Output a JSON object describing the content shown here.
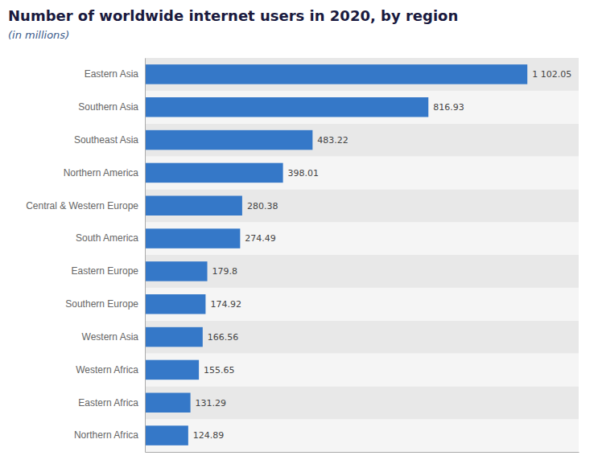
{
  "chart_data": {
    "type": "bar",
    "orientation": "horizontal",
    "title": "Number of worldwide internet users in 2020, by region",
    "subtitle": "(in millions)",
    "categories": [
      "Northern Africa",
      "Eastern Africa",
      "Western Africa",
      "Western Asia",
      "Southern Europe",
      "Eastern Europe",
      "South America",
      "Central & Western Europe",
      "Northern America",
      "Southeast Asia",
      "Southern Asia",
      "Eastern Asia"
    ],
    "values": [
      124.89,
      131.29,
      155.65,
      166.56,
      174.92,
      179.8,
      274.49,
      280.38,
      398.01,
      483.22,
      816.93,
      1102.05
    ],
    "value_labels": [
      "124.89",
      "131.29",
      "155.65",
      "166.56",
      "174.92",
      "179.8",
      "274.49",
      "280.38",
      "398.01",
      "483.22",
      "816.93",
      "1 102.05"
    ],
    "color": "#3578c8",
    "xlim": [
      0,
      1250
    ],
    "data_labels": true,
    "tick_labels": "y",
    "grid": false
  }
}
